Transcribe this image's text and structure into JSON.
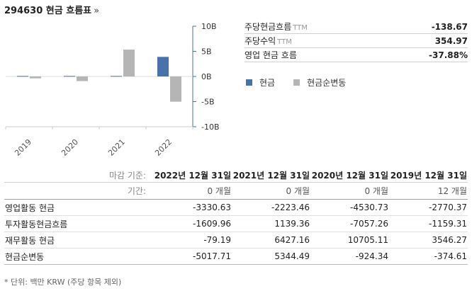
{
  "header": {
    "title": "294630 현금 흐름표",
    "arrow": "»"
  },
  "stats": [
    {
      "label": "주당현금흐름",
      "suffix": "TTM",
      "value": "-138.67"
    },
    {
      "label": "주당수익",
      "suffix": "TTM",
      "value": "354.97"
    },
    {
      "label": "영업 현금 흐름",
      "suffix": "",
      "value": "-37.88%"
    }
  ],
  "legend": [
    {
      "label": "현금",
      "color": "#4a72aa"
    },
    {
      "label": "현금순변동",
      "color": "#b5b5b5"
    }
  ],
  "chart_data": {
    "type": "bar",
    "categories": [
      "2019",
      "2020",
      "2021",
      "2022"
    ],
    "series": [
      {
        "name": "현금",
        "color": "#4a72aa",
        "values": [
          0.1,
          0.1,
          0.1,
          3.9
        ]
      },
      {
        "name": "현금순변동",
        "color": "#b5b5b5",
        "values": [
          -0.37,
          -0.92,
          5.34,
          -5.02
        ]
      }
    ],
    "ylim": [
      -10,
      10
    ],
    "yticks": [
      10,
      5,
      0,
      -5,
      -10
    ],
    "ytick_labels": [
      "10B",
      "5B",
      "0B",
      "-5B",
      "-10B"
    ],
    "grid": false
  },
  "table": {
    "header_label": "마감 기준:",
    "period_label": "기간:",
    "columns": [
      {
        "date": "2022년 12월 31일",
        "period": "0 개월"
      },
      {
        "date": "2021년 12월 31일",
        "period": "0 개월"
      },
      {
        "date": "2020년 12월 31일",
        "period": "0 개월"
      },
      {
        "date": "2019년 12월 31일",
        "period": "12 개월"
      }
    ],
    "rows": [
      {
        "label": "영업활동 현금",
        "values": [
          "-3330.63",
          "-2223.46",
          "-4530.73",
          "-2770.37"
        ]
      },
      {
        "label": "투자활동현금흐름",
        "values": [
          "-1609.96",
          "1139.36",
          "-7057.26",
          "-1159.31"
        ]
      },
      {
        "label": "재무활동 현금",
        "values": [
          "-79.19",
          "6427.16",
          "10705.11",
          "3546.27"
        ]
      },
      {
        "label": "현금순변동",
        "values": [
          "-5017.71",
          "5344.49",
          "-924.34",
          "-374.61"
        ]
      }
    ]
  },
  "footnote": "* 단위: 백만 KRW (주당 항목 제외)"
}
